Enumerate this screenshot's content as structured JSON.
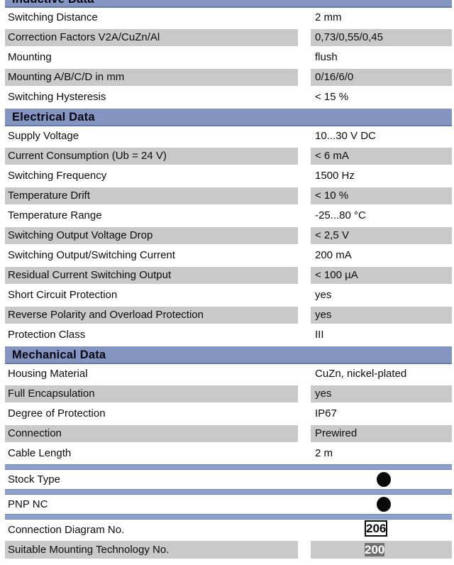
{
  "colors": {
    "header_bg": "#8495c2",
    "header_edge": "#6779a6",
    "separator_bg": "#8da0cb",
    "row_shade": "#c9c9c9",
    "dark_box_bg": "#6f6f6f",
    "indicator_dot": "#0a0a0a"
  },
  "sections": [
    {
      "title": "Inductive Data",
      "clipped": true,
      "rows": [
        {
          "label": "Switching Distance",
          "value": "2 mm"
        },
        {
          "label": "Correction Factors V2A/CuZn/Al",
          "value": "0,73/0,55/0,45"
        },
        {
          "label": "Mounting",
          "value": "flush"
        },
        {
          "label": "Mounting A/B/C/D in mm",
          "value": "0/16/6/0"
        },
        {
          "label": "Switching Hysteresis",
          "value": "< 15 %"
        }
      ]
    },
    {
      "title": "Electrical Data",
      "clipped": false,
      "rows": [
        {
          "label": "Supply Voltage",
          "value": "10...30 V DC"
        },
        {
          "label": "Current Consumption (Ub = 24 V)",
          "value": "< 6 mA"
        },
        {
          "label": "Switching Frequency",
          "value": "1500 Hz"
        },
        {
          "label": "Temperature Drift",
          "value": "< 10 %"
        },
        {
          "label": "Temperature Range",
          "value": "-25...80 °C"
        },
        {
          "label": "Switching Output Voltage Drop",
          "value": "< 2,5 V"
        },
        {
          "label": "Switching Output/Switching Current",
          "value": "200 mA"
        },
        {
          "label": "Residual Current Switching Output",
          "value": "< 100 µA"
        },
        {
          "label": "Short Circuit Protection",
          "value": "yes"
        },
        {
          "label": "Reverse Polarity and Overload Protection",
          "value": "yes"
        },
        {
          "label": "Protection Class",
          "value": "III"
        }
      ]
    },
    {
      "title": "Mechanical Data",
      "clipped": false,
      "rows": [
        {
          "label": "Housing Material",
          "value": "CuZn, nickel-plated"
        },
        {
          "label": "Full Encapsulation",
          "value": "yes"
        },
        {
          "label": "Degree of Protection",
          "value": "IP67"
        },
        {
          "label": "Connection",
          "value": "Prewired"
        },
        {
          "label": "Cable Length",
          "value": "2 m"
        }
      ]
    }
  ],
  "feature_rows": [
    {
      "label": "Stock Type",
      "indicator": "filled-circle"
    },
    {
      "label": "PNP NC",
      "indicator": "filled-circle"
    }
  ],
  "footer_rows": [
    {
      "label": "Connection Diagram No.",
      "value": "206",
      "box_style": "outlined",
      "shaded": false
    },
    {
      "label": "Suitable Mounting Technology No.",
      "value": "200",
      "box_style": "filled",
      "shaded": true
    }
  ]
}
